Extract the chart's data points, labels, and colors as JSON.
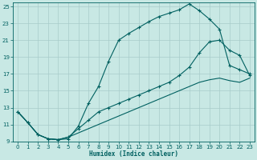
{
  "xlabel": "Humidex (Indice chaleur)",
  "bg_color": "#c8e8e4",
  "grid_color": "#a8ccca",
  "line_color": "#006060",
  "xlim": [
    -0.5,
    23.5
  ],
  "ylim": [
    9,
    25.5
  ],
  "xticks": [
    0,
    1,
    2,
    3,
    4,
    5,
    6,
    7,
    8,
    9,
    10,
    11,
    12,
    13,
    14,
    15,
    16,
    17,
    18,
    19,
    20,
    21,
    22,
    23
  ],
  "yticks": [
    9,
    11,
    13,
    15,
    17,
    19,
    21,
    23,
    25
  ],
  "line1_x": [
    0,
    1,
    2,
    3,
    4,
    5,
    6,
    7,
    8,
    9,
    10,
    11,
    12,
    13,
    14,
    15,
    16,
    17,
    18,
    19,
    20,
    21,
    22,
    23
  ],
  "line1_y": [
    12.5,
    11.2,
    9.8,
    9.3,
    9.2,
    9.3,
    10.8,
    13.5,
    15.5,
    18.5,
    21.0,
    21.8,
    22.5,
    23.2,
    23.8,
    24.2,
    24.6,
    25.3,
    24.5,
    23.5,
    22.3,
    18.0,
    17.5,
    17.0
  ],
  "line2_x": [
    0,
    1,
    2,
    3,
    4,
    5,
    6,
    7,
    8,
    9,
    10,
    11,
    12,
    13,
    14,
    15,
    16,
    17,
    18,
    19,
    20,
    21,
    22,
    23
  ],
  "line2_y": [
    12.5,
    11.2,
    9.8,
    9.3,
    9.2,
    9.5,
    10.5,
    11.5,
    12.5,
    13.0,
    13.5,
    14.0,
    14.5,
    15.0,
    15.5,
    16.0,
    16.8,
    17.8,
    19.5,
    20.8,
    21.0,
    19.8,
    19.2,
    16.8
  ],
  "line3_x": [
    0,
    1,
    2,
    3,
    4,
    5,
    6,
    7,
    8,
    9,
    10,
    11,
    12,
    13,
    14,
    15,
    16,
    17,
    18,
    19,
    20,
    21,
    22,
    23
  ],
  "line3_y": [
    12.5,
    11.2,
    9.8,
    9.3,
    9.2,
    9.5,
    10.0,
    10.5,
    11.0,
    11.5,
    12.0,
    12.5,
    13.0,
    13.5,
    14.0,
    14.5,
    15.0,
    15.5,
    16.0,
    16.3,
    16.5,
    16.2,
    16.0,
    16.5
  ]
}
